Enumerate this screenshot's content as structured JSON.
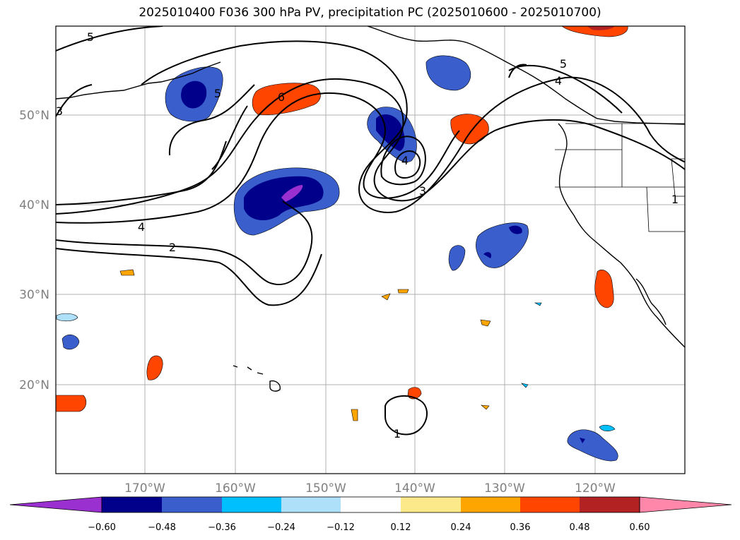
{
  "title": "2025010400 F036 300 hPa PV, precipitation PC (2025010600 - 2025010700)",
  "lat_labels": [
    "50°N",
    "40°N",
    "30°N",
    "20°N"
  ],
  "lon_labels": [
    "170°W",
    "160°W",
    "150°W",
    "140°W",
    "130°W",
    "120°W"
  ],
  "contour_labels": [
    "5",
    "5",
    "6",
    "4",
    "2",
    "3",
    "4",
    "1",
    "5",
    "4",
    "3",
    "1"
  ],
  "colorbar": {
    "ticks": [
      "−0.60",
      "−0.48",
      "−0.36",
      "−0.24",
      "−0.12",
      "0.12",
      "0.24",
      "0.36",
      "0.48",
      "0.60"
    ],
    "colors": [
      "#9b30d0",
      "#00008b",
      "#3a5fcd",
      "#00bfff",
      "#afe0fa",
      "#ffffff",
      "#fcea8a",
      "#ffa500",
      "#ff4500",
      "#b22222",
      "#ff88aa"
    ]
  }
}
